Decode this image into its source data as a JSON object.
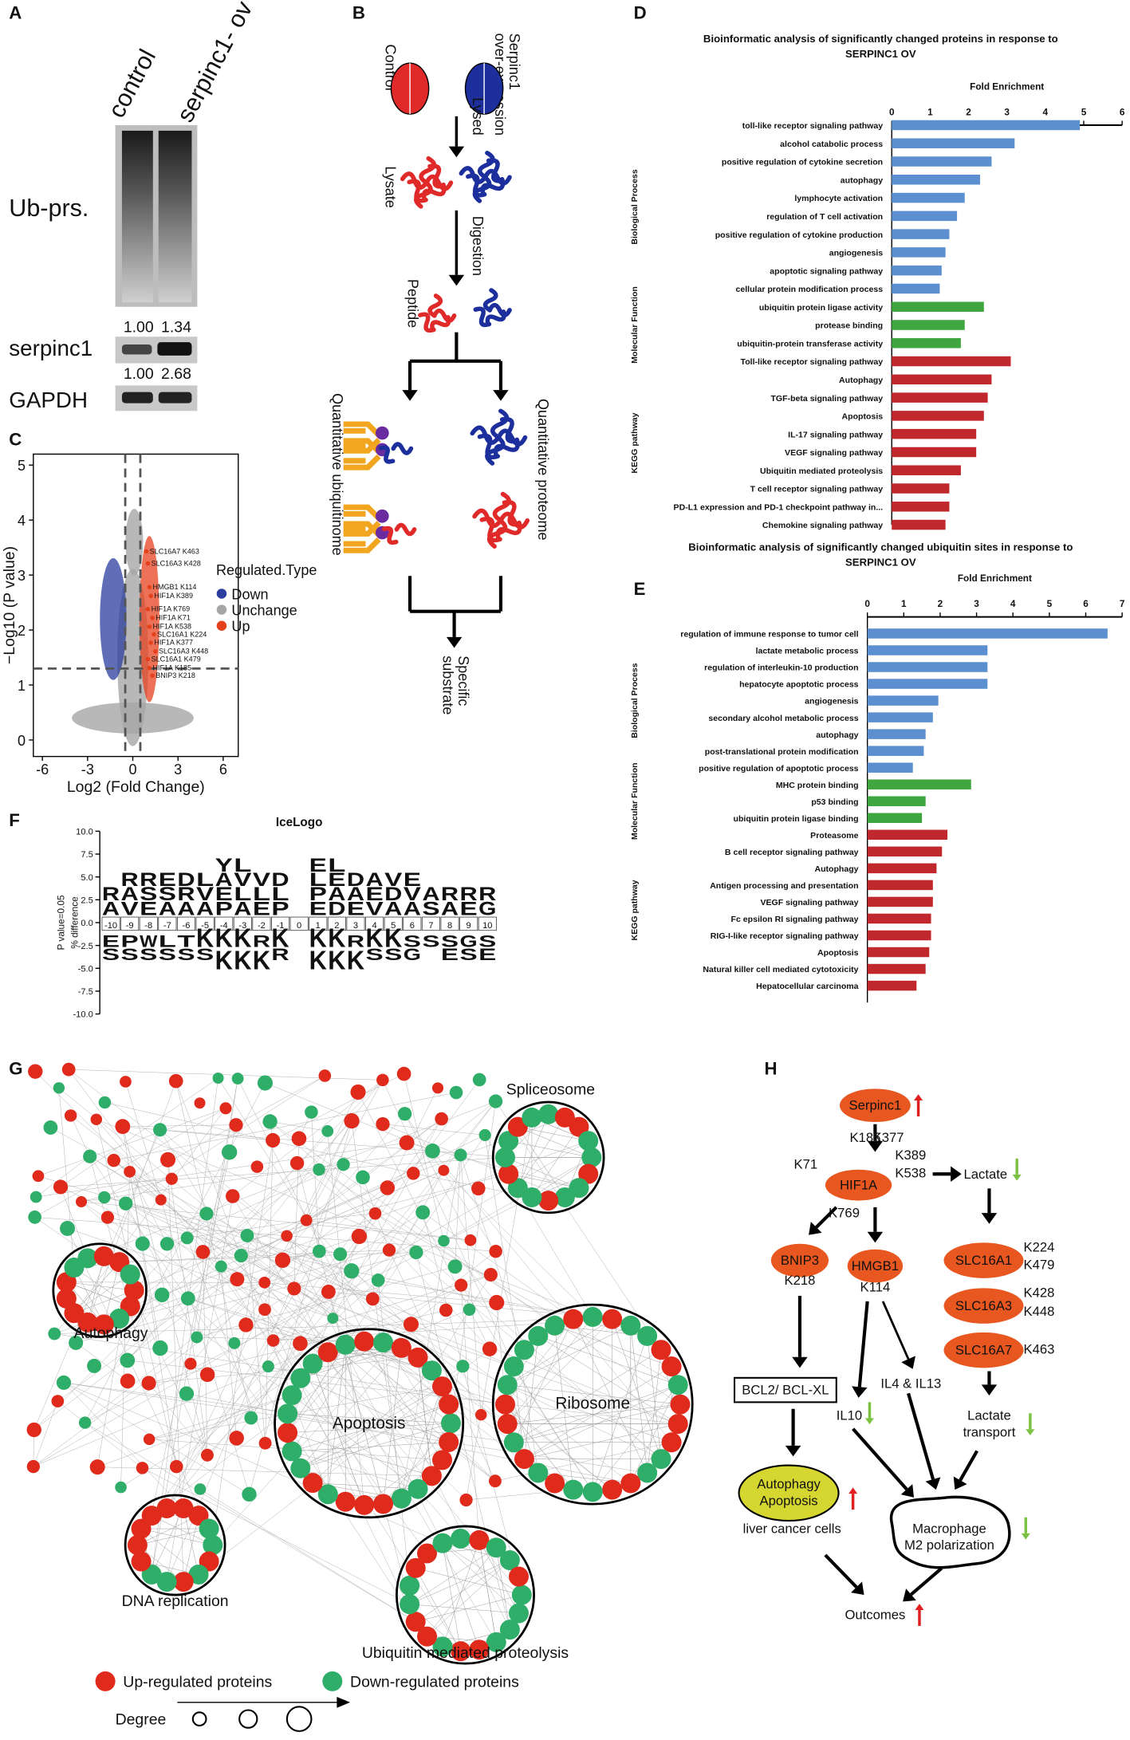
{
  "panel_labels": [
    "A",
    "B",
    "C",
    "D",
    "E",
    "F",
    "G",
    "H"
  ],
  "panel_a": {
    "lanes": [
      "control",
      "serpinc1- ov"
    ],
    "rows": [
      "Ub-prs.",
      "serpinc1",
      "GAPDH"
    ],
    "ub_ratios": [
      "1.00",
      "1.34"
    ],
    "serpinc1_ratios": [
      "1.00",
      "2.68"
    ]
  },
  "panel_b": {
    "control": "Control",
    "overexpression": [
      "Serpinc1",
      "over-expression"
    ],
    "lysed": "Lysed",
    "lysate": "Lysate",
    "digestion": "Digestion",
    "peptide": "Peptide",
    "ubiquitinome": "Quantitative ubiquitinome",
    "proteome": "Quantitative proteome",
    "substrate": [
      "Specific",
      "substrate"
    ]
  },
  "chart_data": [
    {
      "type": "scatter",
      "xlabel": "Log2 (Fold Change)",
      "ylabel": "−Log10 (P value)",
      "xlim": [
        -6.6,
        7
      ],
      "ylim": [
        -0.3,
        5.2
      ],
      "xticks": [
        -6,
        -3,
        0,
        3,
        6
      ],
      "yticks": [
        0,
        1,
        2,
        3,
        4,
        5
      ],
      "thresholds": {
        "x": [
          -0.5,
          0.5
        ],
        "y": 1.3
      },
      "legend_title": "Regulated.Type",
      "series": [
        {
          "name": "Down",
          "color": "#2b3ea0"
        },
        {
          "name": "Unchange",
          "color": "#a6a6a6"
        },
        {
          "name": "Up",
          "color": "#e5411d",
          "labels": [
            "SLC16A7 K463",
            "SLC16A3 K428",
            "HMGB1 K114",
            "HIF1A K389",
            "HIF1A K769",
            "HIF1A K71",
            "HIF1A K538",
            "SLC16A1 K224",
            "HIF1A K377",
            "SLC16A3 K448",
            "SLC16A1 K479",
            "HIF1A K185",
            "BNIP3 K218"
          ],
          "x": [
            0.9,
            1.0,
            1.1,
            1.2,
            1.0,
            1.3,
            1.1,
            1.4,
            1.2,
            1.5,
            1.0,
            1.1,
            1.3
          ],
          "y": [
            3.43,
            3.21,
            2.78,
            2.62,
            2.38,
            2.22,
            2.06,
            1.92,
            1.77,
            1.61,
            1.47,
            1.31,
            1.17
          ]
        }
      ]
    },
    {
      "type": "bar",
      "orientation": "horizontal",
      "title": [
        "Bioinformatic analysis of significantly changed proteins in response to",
        "SERPINC1 OV"
      ],
      "xlabel": "Fold Enrichment",
      "xlim": [
        0,
        6
      ],
      "xticks": [
        0,
        1,
        2,
        3,
        4,
        5,
        6
      ],
      "groups": [
        {
          "name": "Biological Process",
          "color": "#5b8fd0",
          "categories": [
            "toll-like receptor signaling pathway",
            "alcohol catabolic process",
            "positive regulation of cytokine secretion",
            "autophagy",
            "lymphocyte activation",
            "regulation of T cell activation",
            "positive regulation of cytokine production",
            "angiogenesis",
            "apoptotic signaling pathway",
            "cellular protein modification process"
          ],
          "values": [
            4.9,
            3.2,
            2.6,
            2.3,
            1.9,
            1.7,
            1.5,
            1.4,
            1.3,
            1.25
          ]
        },
        {
          "name": "Molecular Function",
          "color": "#3fa63f",
          "categories": [
            "ubiquitin protein ligase activity",
            "protease binding",
            "ubiquitin-protein transferase activity"
          ],
          "values": [
            2.4,
            1.9,
            1.8
          ]
        },
        {
          "name": "KEGG pathway",
          "color": "#c0282d",
          "categories": [
            "Toll-like receptor signaling pathway",
            "Autophagy",
            "TGF-beta signaling pathway",
            "Apoptosis",
            "IL-17 signaling pathway",
            "VEGF signaling pathway",
            "Ubiquitin mediated proteolysis",
            "T cell receptor signaling pathway",
            "PD-L1 expression and PD-1 checkpoint pathway in...",
            "Chemokine signaling pathway"
          ],
          "values": [
            3.1,
            2.6,
            2.5,
            2.4,
            2.2,
            2.2,
            1.8,
            1.5,
            1.5,
            1.4
          ]
        }
      ]
    },
    {
      "type": "bar",
      "orientation": "horizontal",
      "title": [
        "Bioinformatic analysis of significantly changed ubiquitin sites in response to",
        "SERPINC1 OV"
      ],
      "xlabel": "Fold Enrichment",
      "xlim": [
        0,
        7
      ],
      "xticks": [
        0,
        1,
        2,
        3,
        4,
        5,
        6,
        7
      ],
      "groups": [
        {
          "name": "Biological Process",
          "color": "#5b8fd0",
          "categories": [
            "regulation of immune response to tumor cell",
            "lactate metabolic process",
            "regulation of interleukin-10 production",
            "hepatocyte apoptotic process",
            "angiogenesis",
            "secondary alcohol metabolic process",
            "autophagy",
            "post-translational protein modification",
            "positive regulation of apoptotic process"
          ],
          "values": [
            6.6,
            3.3,
            3.3,
            3.3,
            1.95,
            1.8,
            1.6,
            1.55,
            1.25
          ]
        },
        {
          "name": "Molecular Function",
          "color": "#3fa63f",
          "categories": [
            "MHC protein binding",
            "p53 binding",
            "ubiquitin protein ligase binding"
          ],
          "values": [
            2.85,
            1.6,
            1.5
          ]
        },
        {
          "name": "KEGG pathway",
          "color": "#c0282d",
          "categories": [
            "Proteasome",
            "B cell receptor signaling pathway",
            "Autophagy",
            "Antigen processing and presentation",
            "VEGF signaling pathway",
            "Fc epsilon RI signaling pathway",
            "RIG-I-like receptor signaling pathway",
            "Apoptosis",
            "Natural killer cell mediated cytotoxicity",
            "Hepatocellular carcinoma"
          ],
          "values": [
            2.2,
            2.05,
            1.9,
            1.8,
            1.8,
            1.75,
            1.75,
            1.7,
            1.6,
            1.35
          ]
        }
      ]
    },
    {
      "type": "logo",
      "title": "IceLogo",
      "ylabel": [
        "P value=0.05",
        "% difference"
      ],
      "ylim": [
        -10,
        10
      ],
      "yticks": [
        {
          "value": 10,
          "label": "10.0"
        },
        {
          "value": 7.5,
          "label": "7.5"
        },
        {
          "value": 5,
          "label": "5.0"
        },
        {
          "value": 2.5,
          "label": "2.5"
        },
        {
          "value": 0,
          "label": "0.0"
        },
        {
          "value": -2.5,
          "label": "-2.5"
        },
        {
          "value": -5,
          "label": "-5.0"
        },
        {
          "value": -7.5,
          "label": "-7.5"
        },
        {
          "value": -10,
          "label": "-10.0"
        }
      ],
      "positions": [
        -10,
        -9,
        -8,
        -7,
        -6,
        -5,
        -4,
        -3,
        -2,
        -1,
        0,
        1,
        2,
        3,
        4,
        5,
        6,
        7,
        8,
        9,
        10
      ],
      "up": [
        "RA",
        "RAV",
        "RSE",
        "ESA",
        "DRA",
        "LVA",
        "YAEP",
        "LVLA",
        "VLE",
        "DLP",
        "",
        "ELPE",
        "LEAD",
        "DAE",
        "AEV",
        "VDA",
        "EVA",
        "AS",
        "RA",
        "RE",
        "RG"
      ],
      "down": [
        "ES",
        "PS",
        "WS",
        "LS",
        "TS",
        "KS",
        "KK",
        "KK",
        "RK",
        "KR",
        "",
        "KK",
        "KK",
        "RK",
        "KS",
        "KS",
        "SG",
        "S",
        "SE",
        "GS",
        "SE"
      ],
      "letter_colors": {
        "R": "#1f5aa6",
        "K": "#1f5aa6",
        "H": "#1f5aa6",
        "D": "#d0202a",
        "E": "#d0202a",
        "S": "#2f9a3a",
        "T": "#2f9a3a",
        "G": "#2f9a3a",
        "Q": "#8a3aa0",
        "N": "#8a3aa0"
      }
    }
  ],
  "panel_g": {
    "clusters": [
      "Spliceosome",
      "Autophagy",
      "Apoptosis",
      "Ribosome",
      "DNA replication",
      "Ubiquitin mediated proteolysis"
    ],
    "legend": [
      {
        "name": "Up-regulated proteins",
        "color": "#e02a1c"
      },
      {
        "name": "Down-regulated proteins",
        "color": "#2fae6a"
      }
    ],
    "degree_label": "Degree"
  },
  "panel_h": {
    "serpinc1": "Serpinc1",
    "hif1a": "HIF1A",
    "hif1a_sites": [
      "K71",
      "K185",
      "K377",
      "K389",
      "K538",
      "K769"
    ],
    "lactate": "Lactate",
    "bnip3": "BNIP3",
    "bnip3_site": "K218",
    "hmgb1": "HMGB1",
    "hmgb1_site": "K114",
    "slc16a1": "SLC16A1",
    "slc16a1_sites": [
      "K224",
      "K479"
    ],
    "slc16a3": "SLC16A3",
    "slc16a3_sites": [
      "K428",
      "K448"
    ],
    "slc16a7": "SLC16A7",
    "slc16a7_site": "K463",
    "bcl2": "BCL2/ BCL-XL",
    "il4": "IL4 & IL13",
    "il10": "IL10",
    "lactate_transport": [
      "Lactate",
      "transport"
    ],
    "autophagy_apoptosis": [
      "Autophagy",
      "Apoptosis"
    ],
    "liver": "liver cancer cells",
    "macrophage": [
      "Macrophage",
      "M2 polarization"
    ],
    "outcomes": "Outcomes"
  }
}
